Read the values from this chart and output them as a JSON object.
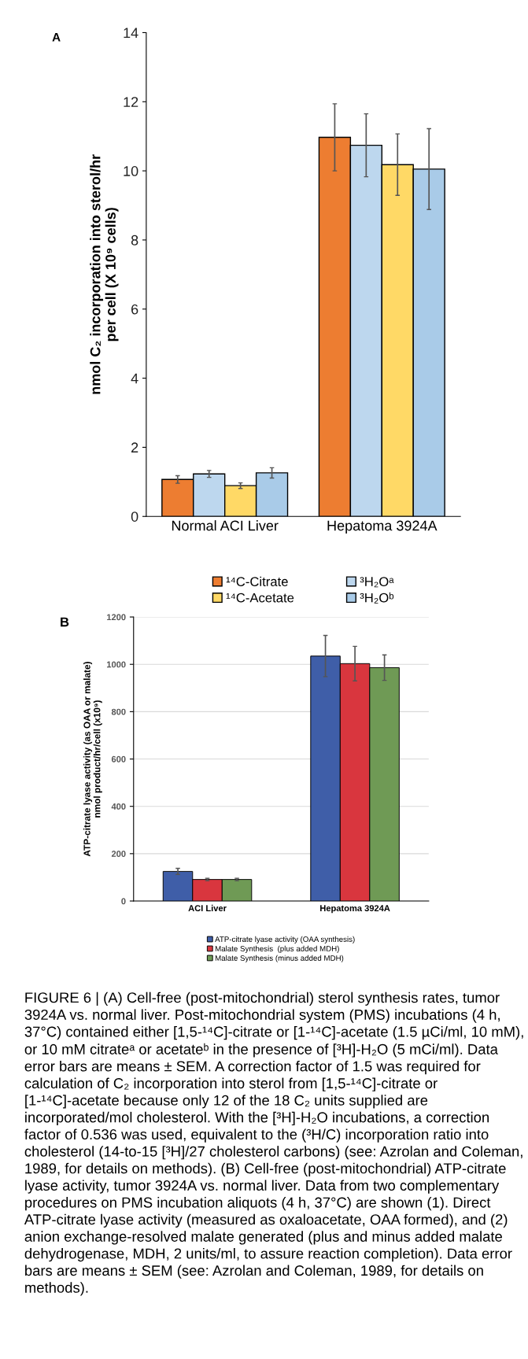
{
  "chart_data": [
    {
      "type": "bar",
      "title": "A",
      "ylabel": "nmol C₂ incorporation into sterol/hr\nper cell (X 10⁹ cells)",
      "categories": [
        "Normal ACI Liver",
        "Hepatoma 3924A"
      ],
      "ylim": [
        0,
        14
      ],
      "yticks": [
        0,
        2,
        4,
        6,
        8,
        10,
        12,
        14
      ],
      "legend": "bottom",
      "grid": false,
      "series": [
        {
          "name": "¹⁴C-Citrate",
          "color": "#ed7d31",
          "values": [
            1.07,
            10.97
          ],
          "errors": [
            0.11,
            0.97
          ]
        },
        {
          "name": "³H₂Oᵃ",
          "color": "#bdd7ee",
          "values": [
            1.23,
            10.74
          ],
          "errors": [
            0.1,
            0.91
          ]
        },
        {
          "name": "¹⁴C-Acetate",
          "color": "#ffd966",
          "values": [
            0.89,
            10.18
          ],
          "errors": [
            0.08,
            0.89
          ]
        },
        {
          "name": "³H₂Oᵇ",
          "color": "#a9cbe8",
          "values": [
            1.26,
            10.05
          ],
          "errors": [
            0.15,
            1.17
          ]
        }
      ]
    },
    {
      "type": "bar",
      "title": "B",
      "ylabel": "ATP-citrate lyase activity (as OAA or malate)\nnmol product/hr/cell (x10⁹)",
      "categories": [
        "ACI Liver",
        "Hepatoma 3924A"
      ],
      "ylim": [
        0,
        1200
      ],
      "yticks": [
        0,
        200,
        400,
        600,
        800,
        1000,
        1200
      ],
      "legend": "bottom",
      "grid": "y",
      "series": [
        {
          "name": "ATP-citrate lyase activity (OAA synthesis)",
          "color": "#3f5ea8",
          "values": [
            125,
            1035
          ],
          "errors": [
            13,
            87
          ]
        },
        {
          "name": "Malate Synthesis  (plus added MDH)",
          "color": "#d9363e",
          "values": [
            91,
            1003
          ],
          "errors": [
            5,
            73
          ]
        },
        {
          "name": "Malate Synthesis (minus added MDH)",
          "color": "#6f9a55",
          "values": [
            91,
            986
          ],
          "errors": [
            5,
            54
          ]
        }
      ],
      "annotations": [
        "FIGURE 6 | (A) Cell-free (post-mitochondrial) sterol synthesis rates, tumor 3924A vs. normal liver. Post-mitochondrial system (PMS) incubations (4 h, 37°C) contained either [1,5-¹⁴C]-citrate or [1-¹⁴C]-acetate (1.5 µCi/ml, 10 mM), or 10 mM citrateᵃ or acetateᵇ in the presence of [³H]-H₂O (5 mCi/ml). Data error bars are means ± SEM. A correction factor of 1.5 was required for calculation of C₂ incorporation into sterol from [1,5-¹⁴C]-citrate or [1-¹⁴C]-acetate because only 12 of the 18 C₂ units supplied are incorporated/mol cholesterol. With the [³H]-H₂O incubations, a correction factor of 0.536 was used, equivalent to the (³H/C) incorporation ratio into cholesterol (14-to-15 [³H]/27 cholesterol carbons) (see: Azrolan and Coleman, 1989, for details on methods). (B) Cell-free (post-mitochondrial) ATP-citrate lyase activity, tumor 3924A vs. normal liver. Data from two complementary procedures on PMS incubation aliquots (4 h, 37°C) are shown (1). Direct ATP-citrate lyase activity (measured as oxaloacetate, OAA formed), and (2) anion exchange-resolved malate generated (plus and minus added malate dehydrogenase, MDH, 2 units/ml, to assure reaction completion). Data error bars are means ± SEM (see: Azrolan and Coleman, 1989, for details on methods)."
      ]
    }
  ]
}
